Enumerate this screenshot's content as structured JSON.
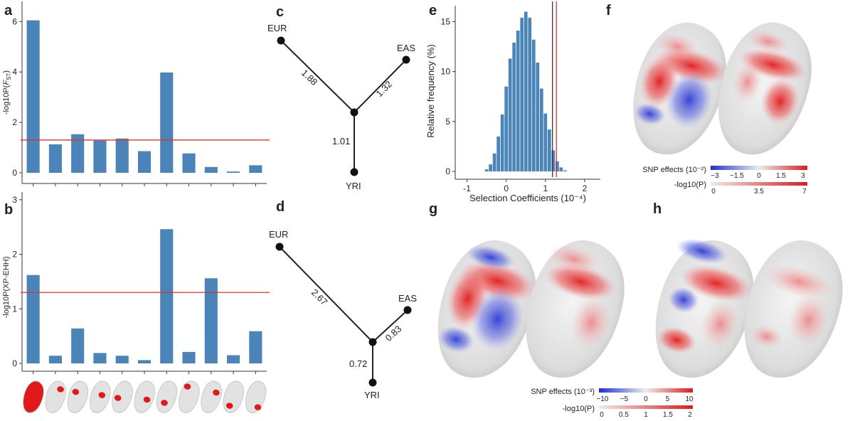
{
  "colors": {
    "bar": "#4a84b8",
    "threshold": "#e03030",
    "accent_blue": "#2b3fd0",
    "accent_red": "#e52a2a"
  },
  "panel_letters": [
    "a",
    "b",
    "c",
    "d",
    "e",
    "f",
    "g",
    "h"
  ],
  "chart_data": [
    {
      "id": "a",
      "type": "bar",
      "ylabel": "-log10P(F_ST)",
      "ylabel_main": "-log10P(",
      "ylabel_italic": "F",
      "ylabel_sub": "ST",
      "ylabel_close": ")",
      "ylim": [
        0,
        6.8
      ],
      "yticks": [
        0,
        2,
        4,
        6
      ],
      "values": [
        6.05,
        1.13,
        1.53,
        1.28,
        1.36,
        0.86,
        3.98,
        0.77,
        0.23,
        0.05,
        0.3
      ],
      "threshold": 1.3
    },
    {
      "id": "b",
      "type": "bar",
      "ylabel": "-log10P(XP-EHH)",
      "ylim": [
        0,
        3.05
      ],
      "yticks": [
        0,
        1,
        2,
        3
      ],
      "values": [
        1.62,
        0.14,
        0.64,
        0.19,
        0.14,
        0.06,
        2.46,
        0.21,
        1.56,
        0.15,
        0.59
      ],
      "threshold": 1.3
    },
    {
      "id": "c",
      "type": "tree",
      "nodes": [
        "EUR",
        "EAS",
        "YRI"
      ],
      "branch_lengths": {
        "EUR": "1.88",
        "EAS": "1.32",
        "YRI": "1.01"
      }
    },
    {
      "id": "d",
      "type": "tree",
      "nodes": [
        "EUR",
        "EAS",
        "YRI"
      ],
      "branch_lengths": {
        "EUR": "2.67",
        "EAS": "0.83",
        "YRI": "0.72"
      }
    },
    {
      "id": "e",
      "type": "bar",
      "xlabel": "Selection Coefficients (10⁻⁴)",
      "ylabel": "Relative frequency (%)",
      "xlim": [
        -1.3,
        2.4
      ],
      "ylim": [
        0,
        16.6
      ],
      "xticks": [
        -1,
        0,
        1,
        2
      ],
      "yticks": [
        0,
        5,
        10,
        15
      ],
      "bin_centers": [
        -0.5,
        -0.4,
        -0.3,
        -0.2,
        -0.1,
        0.0,
        0.1,
        0.2,
        0.3,
        0.4,
        0.5,
        0.6,
        0.7,
        0.8,
        0.9,
        1.0,
        1.1,
        1.2,
        1.3,
        1.4,
        1.5
      ],
      "values": [
        0.2,
        0.7,
        1.8,
        3.5,
        5.7,
        8.5,
        11.3,
        12.9,
        14.1,
        15.4,
        16.0,
        15.4,
        13.2,
        10.9,
        8.3,
        5.8,
        4.2,
        2.1,
        1.0,
        0.4,
        0.1
      ],
      "vlines": [
        {
          "x": 1.18,
          "color": "#333333"
        },
        {
          "x": 1.28,
          "color": "#e03030"
        }
      ]
    }
  ],
  "colorbars_f": {
    "effects_label": "SNP effects (10⁻²)",
    "effects_ticks": [
      "−3",
      "−1.5",
      "0",
      "1.5",
      "3"
    ],
    "p_label": "-log10(P)",
    "p_ticks": [
      "0",
      "3.5",
      "7"
    ]
  },
  "colorbars_gh": {
    "effects_label": "SNP effects (10⁻³)",
    "effects_ticks": [
      "−10",
      "−5",
      "0",
      "5",
      "10"
    ],
    "p_label": "-log10(P)",
    "p_ticks": [
      "0",
      "0.5",
      "1",
      "1.5",
      "2"
    ]
  },
  "faces": {
    "f": [
      "effect-map",
      "p-map"
    ],
    "g": [
      "effect-map",
      "p-map"
    ],
    "h": [
      "effect-map",
      "p-map"
    ]
  }
}
